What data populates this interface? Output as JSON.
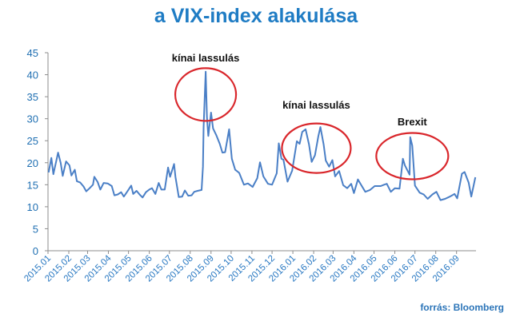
{
  "title": "a VIX-index alakulása",
  "source": "forrás: Bloomberg",
  "colors": {
    "line": "#4a7fc6",
    "circle": "#d9262b",
    "title": "#1f7cc4",
    "axis_text": "#2878c2"
  },
  "chart_data": {
    "type": "line",
    "title": "a VIX-index alakulása",
    "xlabel": "",
    "ylabel": "",
    "ylim": [
      0,
      45
    ],
    "yticks": [
      0,
      5,
      10,
      15,
      20,
      25,
      30,
      35,
      40,
      45
    ],
    "xlim": [
      "2015-01-01",
      "2016-09-30"
    ],
    "grid": false,
    "legend": "none",
    "x_tick_labels": [
      {
        "label": "2015.01",
        "date": "2015-01-01"
      },
      {
        "label": "2015.02",
        "date": "2015-02-01"
      },
      {
        "label": "2015.03",
        "date": "2015-03-01"
      },
      {
        "label": "2015.04",
        "date": "2015-04-01"
      },
      {
        "label": "2015.05",
        "date": "2015-05-01"
      },
      {
        "label": "2015.06",
        "date": "2015-06-01"
      },
      {
        "label": "2015.07",
        "date": "2015-07-01"
      },
      {
        "label": "2015.08",
        "date": "2015-08-01"
      },
      {
        "label": "2015.09",
        "date": "2015-09-01"
      },
      {
        "label": "2015.10",
        "date": "2015-10-01"
      },
      {
        "label": "2015.11",
        "date": "2015-11-01"
      },
      {
        "label": "2015.12",
        "date": "2015-12-01"
      },
      {
        "label": "2016.01",
        "date": "2016-01-01"
      },
      {
        "label": "2016.02",
        "date": "2016-02-01"
      },
      {
        "label": "2016.03",
        "date": "2016-03-01"
      },
      {
        "label": "2016.04",
        "date": "2016-04-01"
      },
      {
        "label": "2016.05",
        "date": "2016-05-01"
      },
      {
        "label": "2016.06",
        "date": "2016-06-01"
      },
      {
        "label": "2016.07",
        "date": "2016-07-01"
      },
      {
        "label": "2016.08",
        "date": "2016-08-01"
      },
      {
        "label": "2016.09",
        "date": "2016-09-01"
      }
    ],
    "series": [
      {
        "color": "#4a7fc6",
        "points": [
          [
            "2015-01-02",
            17.8
          ],
          [
            "2015-01-06",
            21.1
          ],
          [
            "2015-01-09",
            17.4
          ],
          [
            "2015-01-13",
            20.2
          ],
          [
            "2015-01-16",
            22.3
          ],
          [
            "2015-01-20",
            19.9
          ],
          [
            "2015-01-23",
            17.0
          ],
          [
            "2015-01-28",
            20.3
          ],
          [
            "2015-02-02",
            19.4
          ],
          [
            "2015-02-05",
            17.1
          ],
          [
            "2015-02-10",
            18.4
          ],
          [
            "2015-02-13",
            15.8
          ],
          [
            "2015-02-18",
            15.5
          ],
          [
            "2015-02-23",
            14.6
          ],
          [
            "2015-02-27",
            13.5
          ],
          [
            "2015-03-04",
            14.2
          ],
          [
            "2015-03-09",
            15.0
          ],
          [
            "2015-03-11",
            16.8
          ],
          [
            "2015-03-16",
            15.6
          ],
          [
            "2015-03-20",
            13.9
          ],
          [
            "2015-03-25",
            15.4
          ],
          [
            "2015-03-31",
            15.3
          ],
          [
            "2015-04-06",
            14.7
          ],
          [
            "2015-04-10",
            12.6
          ],
          [
            "2015-04-15",
            12.8
          ],
          [
            "2015-04-20",
            13.3
          ],
          [
            "2015-04-24",
            12.3
          ],
          [
            "2015-04-29",
            13.4
          ],
          [
            "2015-05-05",
            14.8
          ],
          [
            "2015-05-08",
            12.9
          ],
          [
            "2015-05-13",
            13.6
          ],
          [
            "2015-05-18",
            12.7
          ],
          [
            "2015-05-22",
            12.1
          ],
          [
            "2015-05-27",
            13.3
          ],
          [
            "2015-06-01",
            13.9
          ],
          [
            "2015-06-05",
            14.2
          ],
          [
            "2015-06-10",
            12.9
          ],
          [
            "2015-06-15",
            15.4
          ],
          [
            "2015-06-19",
            13.9
          ],
          [
            "2015-06-24",
            13.9
          ],
          [
            "2015-06-29",
            18.9
          ],
          [
            "2015-07-02",
            16.8
          ],
          [
            "2015-07-08",
            19.7
          ],
          [
            "2015-07-10",
            16.8
          ],
          [
            "2015-07-15",
            12.2
          ],
          [
            "2015-07-20",
            12.3
          ],
          [
            "2015-07-24",
            13.7
          ],
          [
            "2015-07-29",
            12.5
          ],
          [
            "2015-08-03",
            12.6
          ],
          [
            "2015-08-07",
            13.4
          ],
          [
            "2015-08-12",
            13.6
          ],
          [
            "2015-08-18",
            13.8
          ],
          [
            "2015-08-20",
            19.1
          ],
          [
            "2015-08-21",
            28.0
          ],
          [
            "2015-08-24",
            40.7
          ],
          [
            "2015-08-26",
            30.3
          ],
          [
            "2015-08-28",
            26.1
          ],
          [
            "2015-09-01",
            31.4
          ],
          [
            "2015-09-04",
            27.8
          ],
          [
            "2015-09-09",
            26.2
          ],
          [
            "2015-09-14",
            24.3
          ],
          [
            "2015-09-18",
            22.3
          ],
          [
            "2015-09-22",
            22.4
          ],
          [
            "2015-09-28",
            27.6
          ],
          [
            "2015-10-02",
            20.9
          ],
          [
            "2015-10-07",
            18.4
          ],
          [
            "2015-10-13",
            17.7
          ],
          [
            "2015-10-20",
            15.0
          ],
          [
            "2015-10-26",
            15.3
          ],
          [
            "2015-11-02",
            14.5
          ],
          [
            "2015-11-09",
            16.5
          ],
          [
            "2015-11-13",
            20.1
          ],
          [
            "2015-11-18",
            16.9
          ],
          [
            "2015-11-25",
            15.2
          ],
          [
            "2015-12-01",
            15.0
          ],
          [
            "2015-12-08",
            17.6
          ],
          [
            "2015-12-11",
            24.4
          ],
          [
            "2015-12-15",
            20.9
          ],
          [
            "2015-12-18",
            20.7
          ],
          [
            "2015-12-24",
            15.7
          ],
          [
            "2015-12-31",
            18.2
          ],
          [
            "2016-01-07",
            24.9
          ],
          [
            "2016-01-11",
            24.3
          ],
          [
            "2016-01-15",
            27.0
          ],
          [
            "2016-01-20",
            27.6
          ],
          [
            "2016-01-25",
            24.2
          ],
          [
            "2016-01-29",
            20.2
          ],
          [
            "2016-02-03",
            21.7
          ],
          [
            "2016-02-08",
            26.0
          ],
          [
            "2016-02-11",
            28.1
          ],
          [
            "2016-02-16",
            24.1
          ],
          [
            "2016-02-19",
            20.5
          ],
          [
            "2016-02-24",
            19.1
          ],
          [
            "2016-02-29",
            20.6
          ],
          [
            "2016-03-04",
            16.9
          ],
          [
            "2016-03-10",
            18.1
          ],
          [
            "2016-03-16",
            14.9
          ],
          [
            "2016-03-22",
            14.2
          ],
          [
            "2016-03-28",
            15.2
          ],
          [
            "2016-04-01",
            13.1
          ],
          [
            "2016-04-07",
            16.2
          ],
          [
            "2016-04-12",
            14.9
          ],
          [
            "2016-04-18",
            13.4
          ],
          [
            "2016-04-25",
            13.8
          ],
          [
            "2016-05-02",
            14.7
          ],
          [
            "2016-05-06",
            14.7
          ],
          [
            "2016-05-11",
            14.7
          ],
          [
            "2016-05-16",
            15.0
          ],
          [
            "2016-05-20",
            15.2
          ],
          [
            "2016-05-26",
            13.4
          ],
          [
            "2016-06-01",
            14.2
          ],
          [
            "2016-06-08",
            14.1
          ],
          [
            "2016-06-13",
            20.9
          ],
          [
            "2016-06-16",
            19.4
          ],
          [
            "2016-06-23",
            17.3
          ],
          [
            "2016-06-24",
            25.8
          ],
          [
            "2016-06-27",
            23.9
          ],
          [
            "2016-07-01",
            14.8
          ],
          [
            "2016-07-08",
            13.2
          ],
          [
            "2016-07-14",
            12.8
          ],
          [
            "2016-07-20",
            11.8
          ],
          [
            "2016-07-27",
            12.8
          ],
          [
            "2016-08-02",
            13.4
          ],
          [
            "2016-08-08",
            11.5
          ],
          [
            "2016-08-15",
            11.8
          ],
          [
            "2016-08-22",
            12.3
          ],
          [
            "2016-08-29",
            12.9
          ],
          [
            "2016-09-02",
            11.9
          ],
          [
            "2016-09-09",
            17.5
          ],
          [
            "2016-09-13",
            17.9
          ],
          [
            "2016-09-19",
            15.5
          ],
          [
            "2016-09-23",
            12.3
          ],
          [
            "2016-09-29",
            16.7
          ]
        ]
      }
    ],
    "annotations": [
      {
        "text": "kínai lassulás",
        "date": "2015-08-24",
        "value": 43.0
      },
      {
        "text": "kínai lassulás",
        "date": "2016-02-05",
        "value": 32.3
      },
      {
        "text": "Brexit",
        "date": "2016-06-27",
        "value": 28.5
      }
    ]
  }
}
